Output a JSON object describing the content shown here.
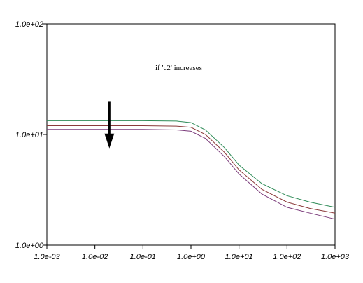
{
  "chart_data": {
    "type": "line",
    "x_scale": "log",
    "y_scale": "log",
    "xlim": [
      0.001,
      1000
    ],
    "ylim": [
      1,
      100
    ],
    "x_tick_labels": [
      "1.0e-03",
      "1.0e-02",
      "1.0e-01",
      "1.0e+00",
      "1.0e+01",
      "1.0e+02",
      "1.0e+03"
    ],
    "x_tick_values": [
      0.001,
      0.01,
      0.1,
      1,
      10,
      100,
      1000
    ],
    "y_tick_labels": [
      "1.0e+02",
      "1.0e+01",
      "1.0e+00"
    ],
    "y_tick_values": [
      100,
      10,
      1
    ],
    "annotation": "if 'c2' increases",
    "arrow": {
      "x": 0.02,
      "y_from": 20,
      "y_to": 7.5,
      "meaning": "down"
    },
    "series": [
      {
        "color": "#2e8b57",
        "x": [
          0.001,
          0.01,
          0.1,
          0.5,
          1,
          2,
          5,
          10,
          30,
          100,
          300,
          1000
        ],
        "y": [
          13.3,
          13.3,
          13.3,
          13.2,
          12.8,
          11.0,
          7.6,
          5.3,
          3.6,
          2.8,
          2.45,
          2.2
        ]
      },
      {
        "color": "#8b3a3a",
        "x": [
          0.001,
          0.01,
          0.1,
          0.5,
          1,
          2,
          5,
          10,
          30,
          100,
          300,
          1000
        ],
        "y": [
          12.0,
          12.0,
          12.0,
          11.9,
          11.6,
          10.0,
          6.9,
          4.8,
          3.2,
          2.45,
          2.15,
          1.95
        ]
      },
      {
        "color": "#7a3a7a",
        "x": [
          0.001,
          0.01,
          0.1,
          0.5,
          1,
          2,
          5,
          10,
          30,
          100,
          300,
          1000
        ],
        "y": [
          11.1,
          11.1,
          11.1,
          11.0,
          10.7,
          9.2,
          6.3,
          4.4,
          2.9,
          2.2,
          1.95,
          1.72
        ]
      }
    ]
  }
}
